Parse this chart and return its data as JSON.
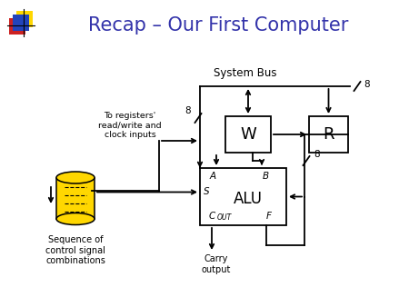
{
  "title": "Recap – Our First Computer",
  "title_color": "#3333aa",
  "title_fontsize": 15,
  "bg_color": "#ffffff",
  "system_bus_label": "System Bus",
  "bus_number": "8",
  "W_label": "W",
  "R_label": "R",
  "ALU_label": "ALU",
  "ALU_A": "A",
  "ALU_B": "B",
  "ALU_S": "S",
  "ALU_Cout": "C",
  "ALU_Cout_sub": "OUT",
  "ALU_F": "F",
  "carry_label": "Carry\noutput",
  "registers_label": "To registers'\nread/write and\nclock inputs",
  "sequence_label": "Sequence of\ncontrol signal\ncombinations",
  "logo_yellow": "#FFD700",
  "logo_red": "#CC2222",
  "logo_blue": "#2244BB",
  "cyl_color": "#FFD700"
}
